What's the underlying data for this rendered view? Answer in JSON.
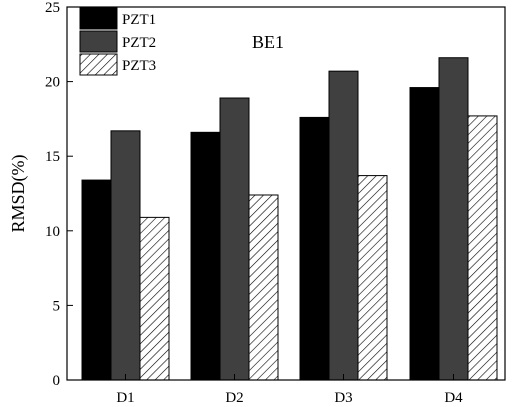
{
  "chart_data": {
    "type": "bar",
    "title": "BE1",
    "xlabel": "",
    "ylabel": "RMSD(%)",
    "categories": [
      "D1",
      "D2",
      "D3",
      "D4"
    ],
    "series": [
      {
        "name": "PZT1",
        "values": [
          13.4,
          16.6,
          17.6,
          19.6
        ],
        "fill": "#000000",
        "pattern": "solid"
      },
      {
        "name": "PZT2",
        "values": [
          16.7,
          18.9,
          20.7,
          21.6
        ],
        "fill": "#404040",
        "pattern": "solid"
      },
      {
        "name": "PZT3",
        "values": [
          10.9,
          12.4,
          13.7,
          17.7
        ],
        "fill": "#ffffff",
        "pattern": "hatch"
      }
    ],
    "ylim": [
      0,
      25
    ],
    "yticks": [
      0,
      5,
      10,
      15,
      20,
      25
    ],
    "grid": false,
    "legend_position": "top-left"
  }
}
